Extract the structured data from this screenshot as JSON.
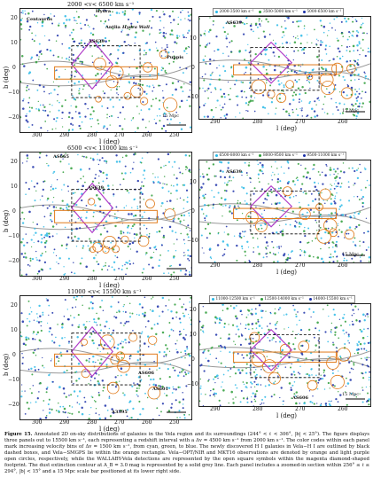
{
  "panels": [
    {
      "title": "2000  <v<  6500 km s⁻¹",
      "legend": [
        "2000-3500 km s⁻¹",
        "3500-5000 km s⁻¹",
        "5000-6500 km s⁻¹"
      ],
      "left_labels": [
        "Centaurus",
        "Hydra",
        "Antlia",
        "Hydra Wall",
        "AS639",
        "Puppis"
      ],
      "right_labels": [
        "AS639"
      ],
      "scale_left": "15 Mpc",
      "scale_right": "15 Mpc",
      "ylabel": "b (deg)",
      "xlabel": "l (deg)",
      "left_yticks": [
        "20",
        "10",
        "0",
        "−10",
        "−20"
      ],
      "left_xticks": [
        "300",
        "290",
        "280",
        "270",
        "260",
        "250"
      ],
      "right_yticks": [
        "10",
        "0",
        "−10"
      ],
      "right_xticks": [
        "290",
        "280",
        "270",
        "260"
      ]
    },
    {
      "title": "6500  <v<  11000 km s⁻¹",
      "legend": [
        "6500-8000 km s⁻¹",
        "8000-9500 km s⁻¹",
        "9500-11000 km s⁻¹"
      ],
      "left_labels": [
        "AS665",
        "AS639"
      ],
      "right_labels": [
        "AS639"
      ],
      "scale_left": "",
      "scale_right": "15 Mpc",
      "ylabel": "b (deg)",
      "xlabel": "l (deg)",
      "left_yticks": [
        "20",
        "10",
        "0",
        "−10",
        "−20"
      ],
      "left_xticks": [
        "300",
        "290",
        "280",
        "270",
        "260",
        "250"
      ],
      "right_yticks": [
        "10",
        "0",
        "−10"
      ],
      "right_xticks": [
        "290",
        "280",
        "270",
        "260"
      ]
    },
    {
      "title": "11000  <v<  15500 km s⁻¹",
      "legend": [
        "11000-12500 km s⁻¹",
        "12500-14000 km s⁻¹",
        "14000-15500 km s⁻¹"
      ],
      "left_labels": [
        "AS606",
        "AS601",
        "A3395"
      ],
      "right_labels": [
        "AS606"
      ],
      "scale_left": "",
      "scale_right": "15 Mpc",
      "ylabel": "b (deg)",
      "xlabel": "l (deg)",
      "left_yticks": [
        "20",
        "10",
        "0",
        "−10",
        "−20"
      ],
      "left_xticks": [
        "300",
        "290",
        "280",
        "270",
        "260",
        "250"
      ],
      "right_yticks": [
        "20",
        "10",
        "0",
        "−10"
      ],
      "right_xticks": [
        "290",
        "280",
        "270",
        "260"
      ]
    }
  ],
  "colors": {
    "cyan": "#29b8e6",
    "green": "#2e9e3a",
    "blue": "#1a2fa8",
    "orange": "#e07a1a",
    "magenta": "#b03cc8",
    "grey": "#999999"
  },
  "caption": {
    "label": "Figure 15.",
    "text": "Annotated 2D on-sky distributions of galaxies in the Vela region and its surroundings (244° < ℓ < 306°, |b| < 25°). The figure displays three panels out to 15500 km s⁻¹, each representing a redshift interval with a Δv = 4500 km s⁻¹ from 2000 km s⁻¹. The color codes within each panel mark increasing velocity bins of Δv = 1500 km s⁻¹, from cyan, green, to blue. The newly discovered H I galaxies in Vela−H I are outlined by black dashed boxes, and Vela−SMGPS lie within the orange rectangle. Vela−OPT/NIR and MKT16 observations are denoted by orange and light purple open circles, respectively, while the WALLABY-Vela detections are represented by the open square symbols within the magenta diamond-shaped footprint. The dust extinction contour at A_B = 3.0 mag is represented by a solid grey line. Each panel includes a zoomed-in section within 256° ≤ ℓ ≤ 294°, |b| < 15° and a 15 Mpc scale bar positioned at its lower right side."
  }
}
